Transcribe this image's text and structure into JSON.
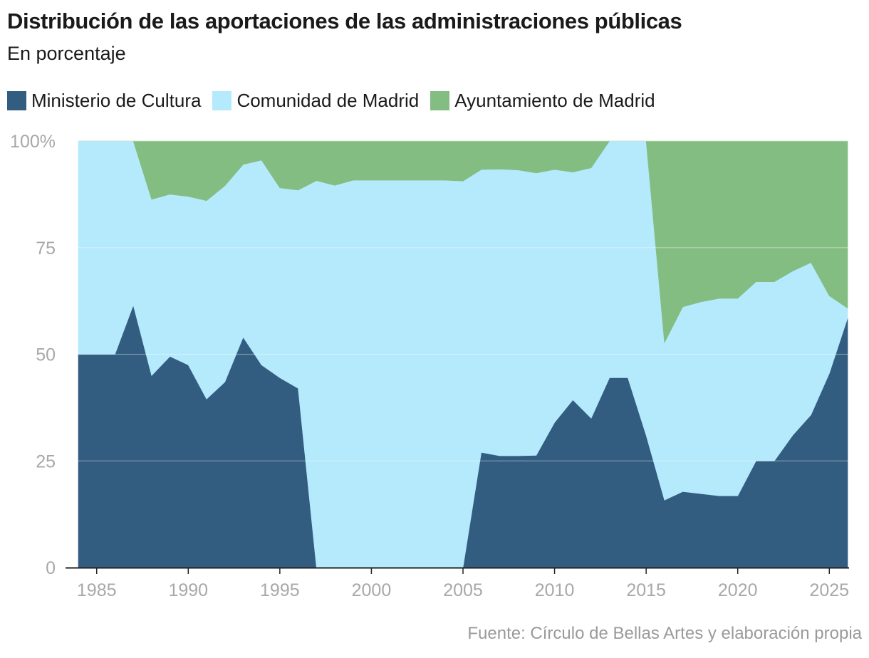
{
  "title": "Distribución de las aportaciones de las administraciones públicas",
  "subtitle": "En porcentaje",
  "source": "Fuente: Círculo de Bellas Artes y elaboración propia",
  "chart_data": {
    "type": "area",
    "stacked": true,
    "x": [
      1984,
      1985,
      1986,
      1987,
      1988,
      1989,
      1990,
      1991,
      1992,
      1993,
      1994,
      1995,
      1996,
      1997,
      1998,
      1999,
      2000,
      2001,
      2002,
      2003,
      2004,
      2005,
      2006,
      2007,
      2008,
      2009,
      2010,
      2011,
      2012,
      2013,
      2014,
      2015,
      2016,
      2017,
      2018,
      2019,
      2020,
      2021,
      2022,
      2023,
      2024,
      2025,
      2026
    ],
    "series": [
      {
        "name": "Ministerio de Cultura",
        "color": "#325c80",
        "values": [
          50,
          50,
          50,
          61.5,
          45,
          49.5,
          47.5,
          39.5,
          43.5,
          54,
          47.5,
          44.5,
          42,
          0,
          0,
          0,
          0,
          0,
          0,
          0,
          0,
          0,
          27,
          26.2,
          26.2,
          26.3,
          34,
          39.3,
          35,
          44.5,
          44.5,
          31,
          15.8,
          17.8,
          17.3,
          16.8,
          16.8,
          25,
          25,
          31,
          35.8,
          45.5,
          58.5
        ]
      },
      {
        "name": "Comunidad de Madrid",
        "color": "#b4eafc",
        "values": [
          50,
          50,
          50,
          38.5,
          41.3,
          38,
          39.5,
          46.5,
          46,
          40.5,
          48,
          44.5,
          46.5,
          90.7,
          89.6,
          90.8,
          90.8,
          90.8,
          90.8,
          90.8,
          90.8,
          90.6,
          66.3,
          67.2,
          67,
          66.2,
          59.3,
          53.4,
          58.7,
          55.5,
          55.5,
          69,
          36.9,
          43.3,
          45,
          46.3,
          46.3,
          42,
          42,
          38.5,
          35.7,
          18.2,
          2.3
        ]
      },
      {
        "name": "Ayuntamiento de Madrid",
        "color": "#84bd82",
        "values": [
          0,
          0,
          0,
          0,
          13.7,
          12.5,
          13,
          14,
          10.5,
          5.5,
          4.5,
          11,
          11.5,
          9.3,
          10.4,
          9.2,
          9.2,
          9.2,
          9.2,
          9.2,
          9.2,
          9.4,
          6.7,
          6.6,
          6.8,
          7.5,
          6.7,
          7.3,
          6.3,
          0,
          0,
          0,
          47.3,
          38.9,
          37.7,
          36.9,
          36.9,
          33,
          33,
          30.5,
          28.5,
          36.3,
          39.2
        ]
      }
    ],
    "ylim": [
      0,
      100
    ],
    "xlim": [
      1984,
      2026
    ],
    "yticks": [
      0,
      25,
      50,
      75,
      100
    ],
    "ytick_labels": [
      "0",
      "25",
      "50",
      "75",
      "100%"
    ],
    "xticks": [
      1985,
      1990,
      1995,
      2000,
      2005,
      2010,
      2015,
      2020,
      2025
    ],
    "xtick_labels": [
      "1985",
      "1990",
      "1995",
      "2000",
      "2005",
      "2010",
      "2015",
      "2020",
      "2025"
    ],
    "grid": true,
    "legend_position": "top-left"
  }
}
